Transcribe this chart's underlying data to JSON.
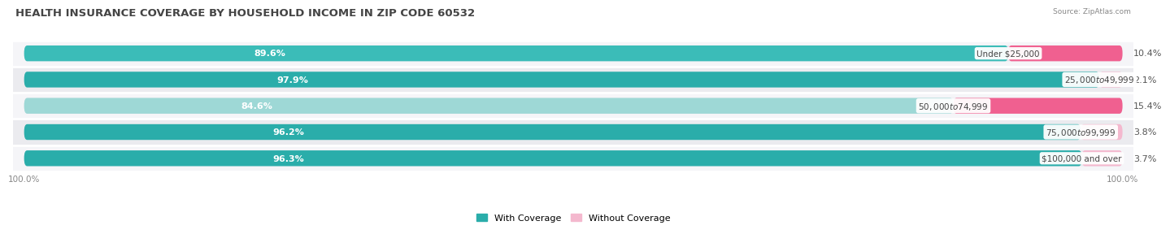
{
  "title": "HEALTH INSURANCE COVERAGE BY HOUSEHOLD INCOME IN ZIP CODE 60532",
  "source": "Source: ZipAtlas.com",
  "categories": [
    "Under $25,000",
    "$25,000 to $49,999",
    "$50,000 to $74,999",
    "$75,000 to $99,999",
    "$100,000 and over"
  ],
  "with_coverage": [
    89.6,
    97.9,
    84.6,
    96.2,
    96.3
  ],
  "without_coverage": [
    10.4,
    2.1,
    15.4,
    3.8,
    3.7
  ],
  "teal_colors": [
    "#3BBCB8",
    "#2AADAA",
    "#9ED8D6",
    "#2AADAA",
    "#2AADAA"
  ],
  "color_without_dark": "#F06090",
  "color_without_light": "#F4A0C0",
  "without_colors": [
    "#F06090",
    "#F4B8CE",
    "#F06090",
    "#F4B8CE",
    "#F4B8CE"
  ],
  "color_track": "#E8E8EE",
  "title_fontsize": 9.5,
  "label_fontsize": 8,
  "tick_fontsize": 7.5,
  "legend_fontsize": 8,
  "fig_bg": "#ffffff",
  "row_bg_odd": "#f5f5f8",
  "row_bg_even": "#ebebef"
}
